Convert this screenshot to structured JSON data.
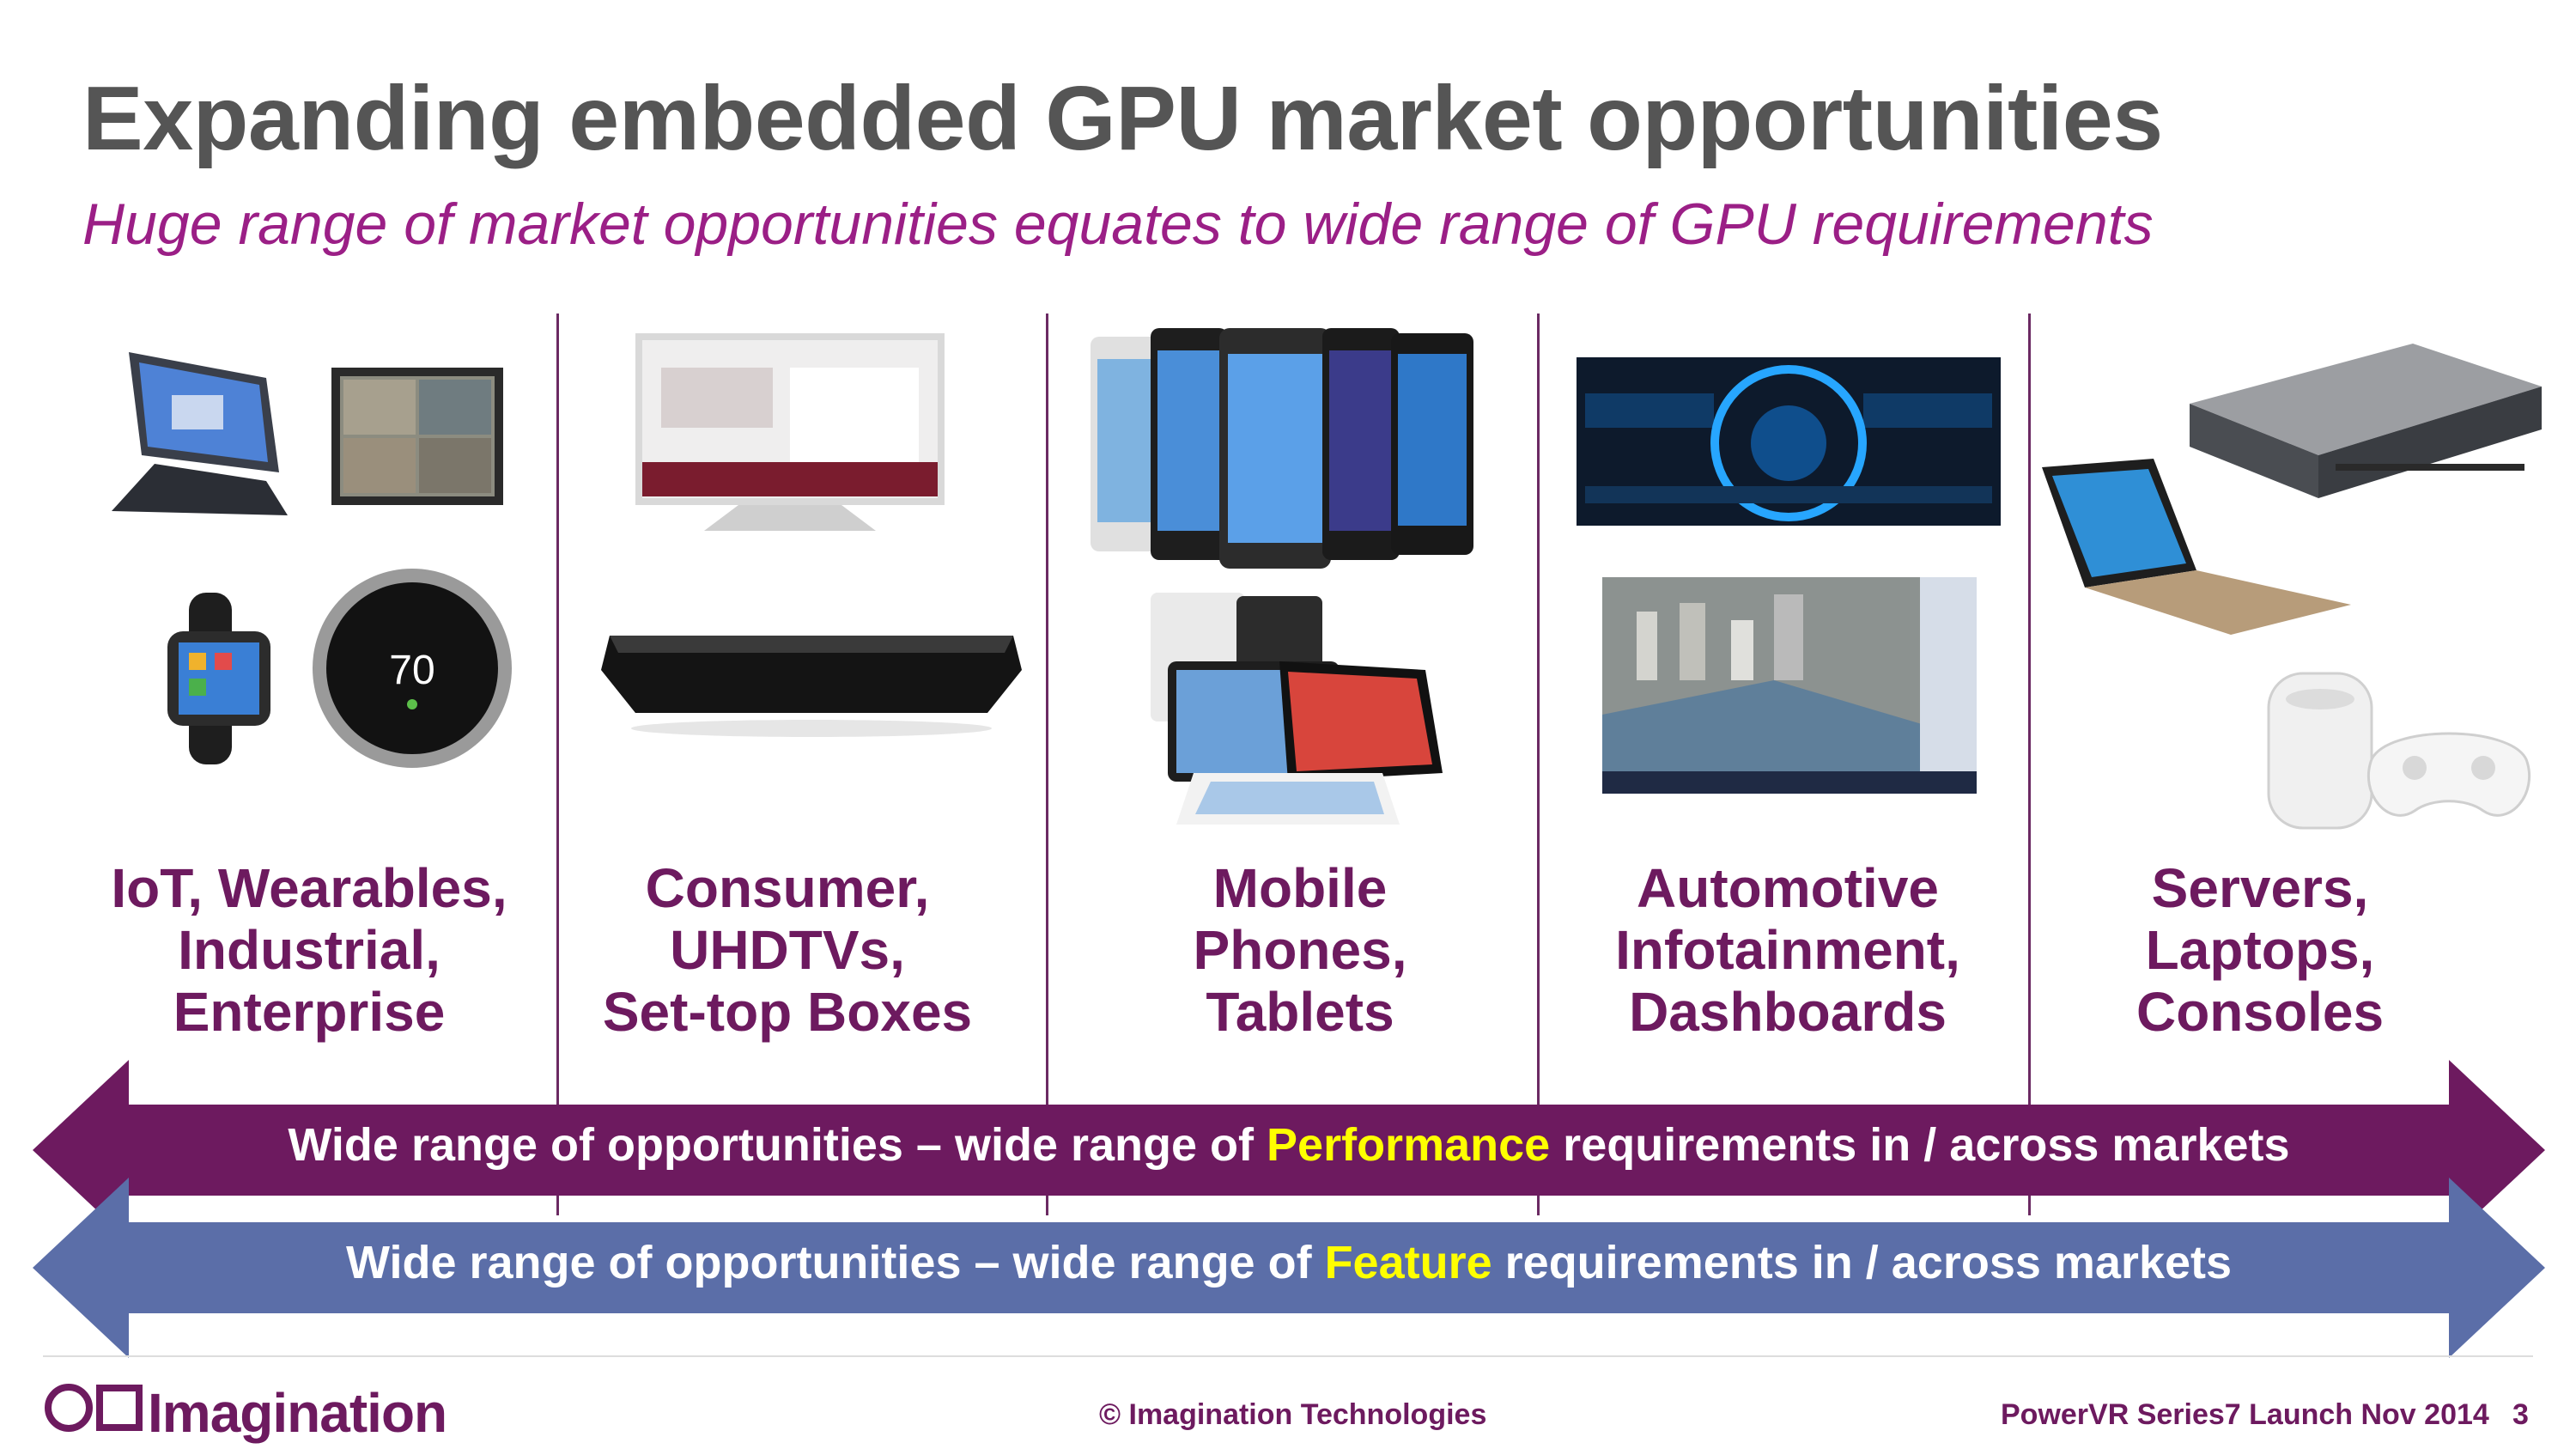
{
  "slide": {
    "title": "Expanding embedded GPU market opportunities",
    "subtitle": "Huge range of market opportunities equates to wide range of GPU requirements"
  },
  "columns": [
    {
      "lines": [
        "IoT, Wearables,",
        "Industrial,",
        "Enterprise"
      ]
    },
    {
      "lines": [
        "Consumer,",
        "UHDTVs,",
        "Set-top Boxes"
      ]
    },
    {
      "lines": [
        "Mobile",
        "Phones,",
        "Tablets"
      ]
    },
    {
      "lines": [
        "Automotive",
        "Infotainment,",
        "Dashboards"
      ]
    },
    {
      "lines": [
        "Servers,",
        "Laptops,",
        "Consoles"
      ]
    }
  ],
  "device_images": {
    "thermostat_reading": "70"
  },
  "arrows": {
    "performance": {
      "prefix": "Wide range of opportunities – wide range of ",
      "highlight": "Performance",
      "suffix": " requirements in / across markets"
    },
    "feature": {
      "prefix": "Wide range of opportunities – wide range of ",
      "highlight": "Feature",
      "suffix": " requirements in / across markets"
    }
  },
  "footer": {
    "logo": "Imagination",
    "copyright": "© Imagination Technologies",
    "event": "PowerVR Series7 Launch Nov 2014",
    "page": "3"
  },
  "colors": {
    "title": "#555555",
    "subtitle": "#9b1f86",
    "category_text": "#6d1a5f",
    "performance_arrow": "#6d1a5f",
    "feature_arrow": "#5b6ea8",
    "highlight": "#ffff00"
  }
}
